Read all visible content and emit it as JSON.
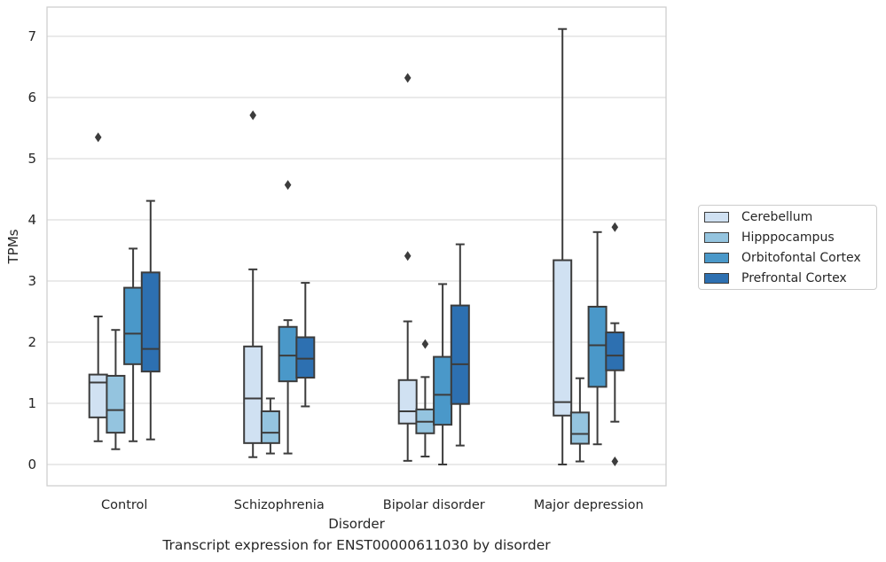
{
  "chart_data": {
    "type": "boxplot",
    "title": "",
    "caption": "Transcript expression for ENST00000611030 by disorder",
    "xlabel": "Disorder",
    "ylabel": "TPMs",
    "ylim": [
      -0.35,
      7.5
    ],
    "yticks": [
      0,
      1,
      2,
      3,
      4,
      5,
      6,
      7
    ],
    "grid": true,
    "legend_position": "right",
    "categories": [
      "Control",
      "Schizophrenia",
      "Bipolar disorder",
      "Major depression"
    ],
    "series": [
      {
        "name": "Cerebellum",
        "color": "#d0e1f2",
        "boxes": [
          {
            "whislo": 0.38,
            "q1": 0.77,
            "med": 1.34,
            "q3": 1.47,
            "whishi": 2.42,
            "fliers": [
              5.35
            ]
          },
          {
            "whislo": 0.12,
            "q1": 0.35,
            "med": 1.08,
            "q3": 1.93,
            "whishi": 3.19,
            "fliers": [
              5.71
            ]
          },
          {
            "whislo": 0.06,
            "q1": 0.67,
            "med": 0.87,
            "q3": 1.38,
            "whishi": 2.34,
            "fliers": [
              3.41,
              6.32
            ]
          },
          {
            "whislo": 0.0,
            "q1": 0.8,
            "med": 1.02,
            "q3": 3.34,
            "whishi": 7.12,
            "fliers": []
          }
        ]
      },
      {
        "name": "Hipppocampus",
        "color": "#94c4df",
        "boxes": [
          {
            "whislo": 0.25,
            "q1": 0.52,
            "med": 0.89,
            "q3": 1.45,
            "whishi": 2.2,
            "fliers": []
          },
          {
            "whislo": 0.18,
            "q1": 0.35,
            "med": 0.52,
            "q3": 0.87,
            "whishi": 1.08,
            "fliers": []
          },
          {
            "whislo": 0.13,
            "q1": 0.51,
            "med": 0.7,
            "q3": 0.9,
            "whishi": 1.43,
            "fliers": [
              1.97
            ]
          },
          {
            "whislo": 0.05,
            "q1": 0.34,
            "med": 0.5,
            "q3": 0.85,
            "whishi": 1.41,
            "fliers": []
          }
        ]
      },
      {
        "name": "Orbitofontal Cortex",
        "color": "#4a98c9",
        "boxes": [
          {
            "whislo": 0.38,
            "q1": 1.64,
            "med": 2.14,
            "q3": 2.89,
            "whishi": 3.53,
            "fliers": []
          },
          {
            "whislo": 0.18,
            "q1": 1.36,
            "med": 1.78,
            "q3": 2.25,
            "whishi": 2.36,
            "fliers": [
              4.57
            ]
          },
          {
            "whislo": 0.0,
            "q1": 0.65,
            "med": 1.14,
            "q3": 1.76,
            "whishi": 2.95,
            "fliers": []
          },
          {
            "whislo": 0.33,
            "q1": 1.27,
            "med": 1.95,
            "q3": 2.58,
            "whishi": 3.8,
            "fliers": []
          }
        ]
      },
      {
        "name": "Prefrontal Cortex",
        "color": "#2d70b1",
        "boxes": [
          {
            "whislo": 0.41,
            "q1": 1.52,
            "med": 1.89,
            "q3": 3.14,
            "whishi": 4.31,
            "fliers": []
          },
          {
            "whislo": 0.95,
            "q1": 1.42,
            "med": 1.73,
            "q3": 2.08,
            "whishi": 2.97,
            "fliers": []
          },
          {
            "whislo": 0.31,
            "q1": 0.99,
            "med": 1.64,
            "q3": 2.6,
            "whishi": 3.6,
            "fliers": []
          },
          {
            "whislo": 0.7,
            "q1": 1.54,
            "med": 1.78,
            "q3": 2.16,
            "whishi": 2.31,
            "fliers": [
              0.05,
              3.88
            ]
          }
        ]
      }
    ]
  }
}
